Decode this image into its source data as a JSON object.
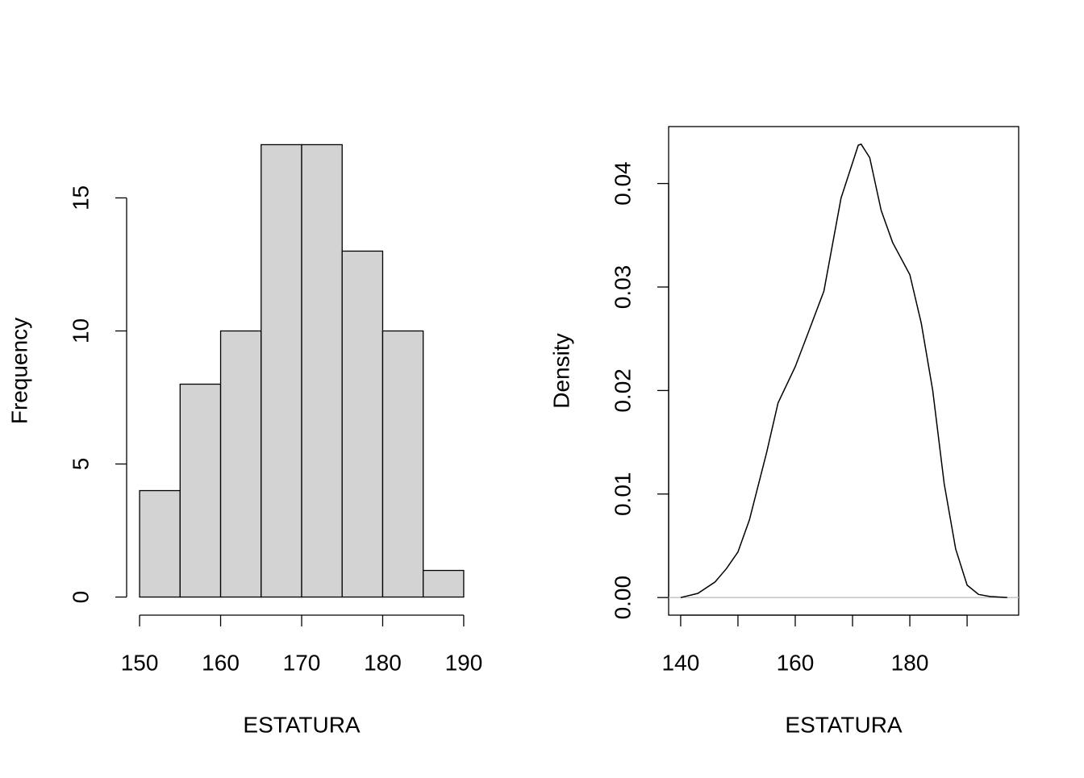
{
  "chart_data": [
    {
      "type": "histogram",
      "xlabel": "ESTATURA",
      "ylabel": "Frequency",
      "bins": [
        150,
        155,
        160,
        165,
        170,
        175,
        180,
        185,
        190
      ],
      "values": [
        4,
        8,
        10,
        17,
        17,
        13,
        10,
        1
      ],
      "color": "#d3d3d3",
      "xlim": [
        148.4,
        191.6
      ],
      "xticks": [
        150,
        160,
        170,
        180,
        190
      ],
      "ylim": [
        -0.68,
        17.68
      ],
      "yticks": [
        0,
        5,
        10,
        15
      ]
    },
    {
      "type": "line",
      "xlabel": "ESTATURA",
      "ylabel": "Density",
      "x": [
        140,
        143,
        146,
        148,
        150,
        152,
        155,
        157,
        160,
        162,
        165,
        168,
        171,
        171.5,
        173,
        175,
        177,
        180,
        182,
        184,
        186,
        188,
        190,
        192,
        194,
        197
      ],
      "series": [
        {
          "color": "#000000",
          "values": [
            0,
            0.0004,
            0.0015,
            0.0028,
            0.0044,
            0.0075,
            0.014,
            0.0188,
            0.0223,
            0.0252,
            0.0296,
            0.0386,
            0.0437,
            0.0438,
            0.0425,
            0.0374,
            0.0343,
            0.0312,
            0.0265,
            0.02,
            0.011,
            0.0047,
            0.0012,
            0.0003,
            0.0001,
            0
          ]
        }
      ],
      "xlim": [
        137.9,
        199.0
      ],
      "xticks": [
        140,
        160,
        180
      ],
      "xminor_ticks": [
        150,
        170,
        190
      ],
      "ylim": [
        -0.0017,
        0.0455
      ],
      "yticks": [
        {
          "value": 0,
          "label": "0.00"
        },
        0.01,
        0.02,
        0.03,
        0.04
      ]
    }
  ]
}
